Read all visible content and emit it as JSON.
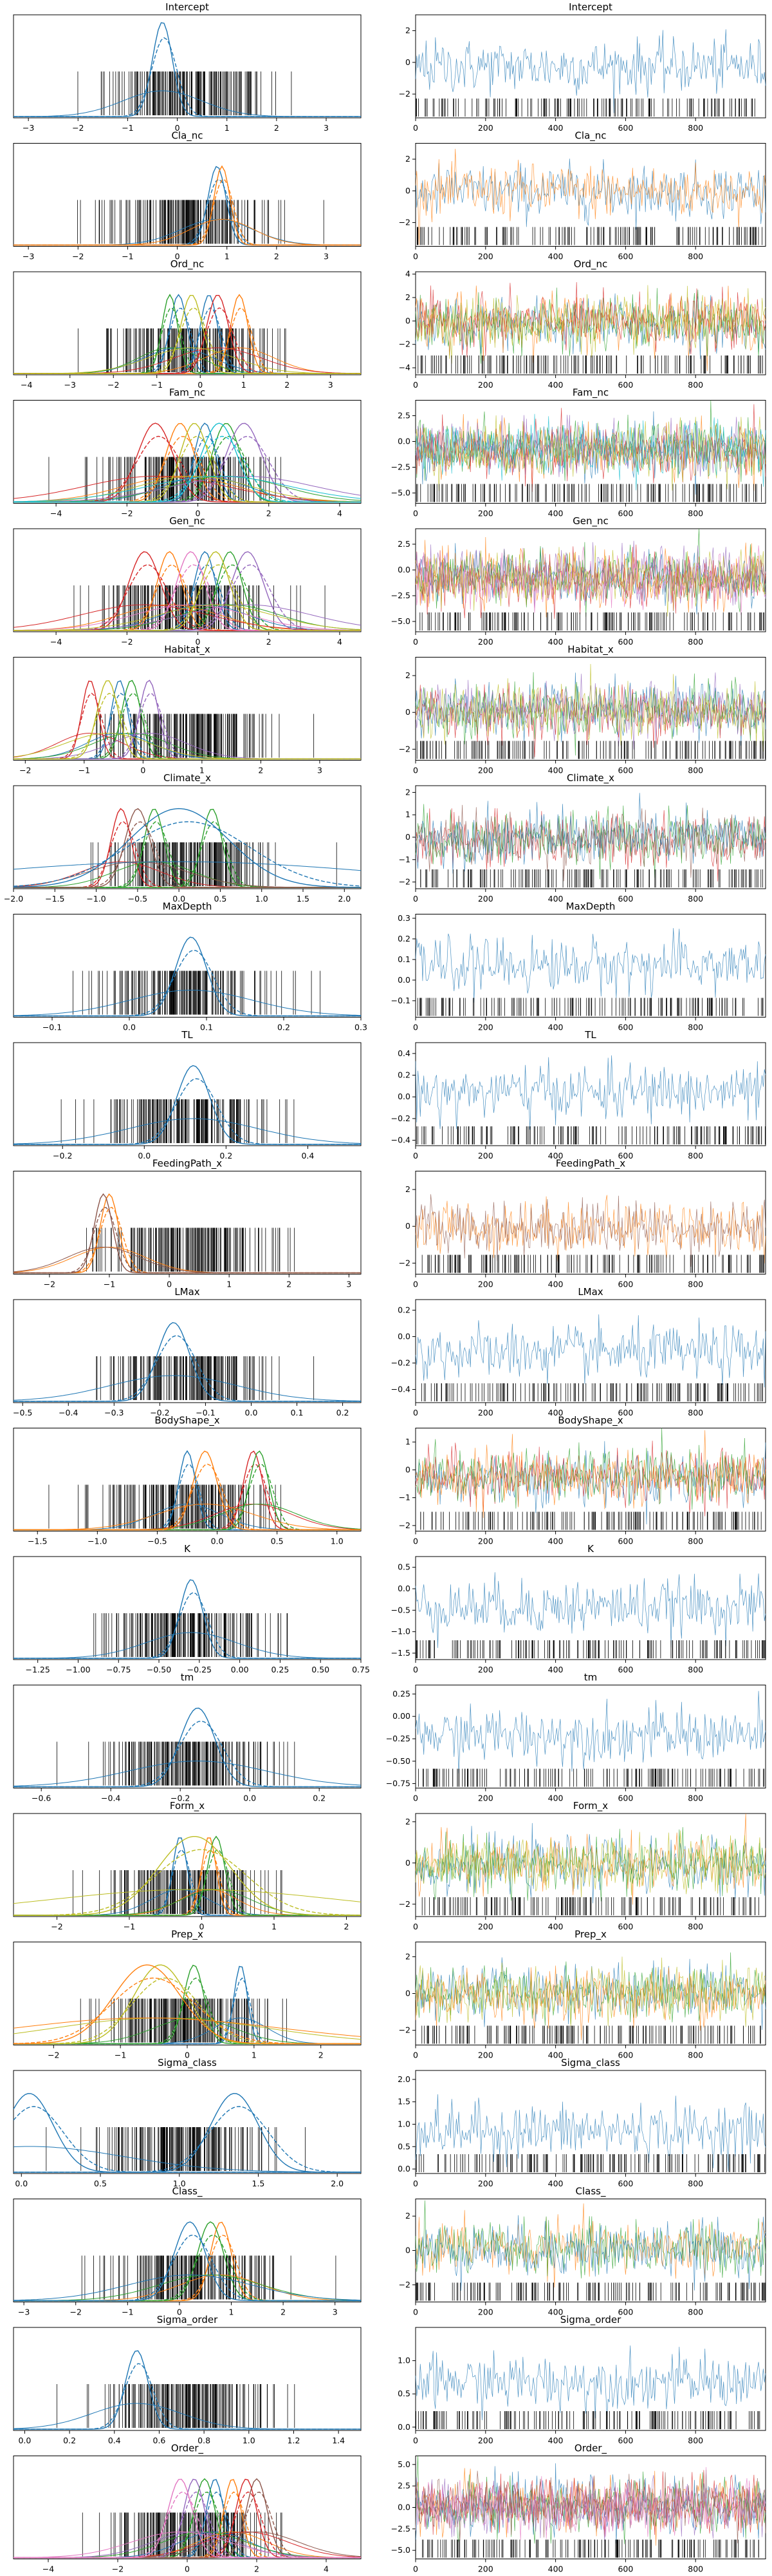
{
  "colors": {
    "C0": "#1f77b4",
    "C1": "#ff7f0e",
    "C2": "#2ca02c",
    "C3": "#d62728",
    "C4": "#9467bd",
    "C5": "#8c564b",
    "C6": "#e377c2",
    "C7": "#7f7f7f",
    "C8": "#bcbd22",
    "C9": "#17becf",
    "rug": "#000000"
  },
  "chart_data": [
    {
      "type": "line",
      "title": "Intercept",
      "left": {
        "xticks": [
          "−3",
          "−2",
          "−1",
          "0",
          "1",
          "2",
          "3"
        ],
        "xlim": [
          -3.3,
          3.7
        ]
      },
      "right": {
        "yticks": [
          "−2",
          "0",
          "2"
        ],
        "ylim": [
          -3.5,
          3.0
        ]
      },
      "series": [
        {
          "name": "",
          "color": "C0",
          "peaks": [
            -0.3
          ],
          "spread": 0.2,
          "scale": 1.2
        }
      ]
    },
    {
      "type": "line",
      "title": "Cla_nc",
      "left": {
        "xticks": [
          "−3",
          "−2",
          "−1",
          "0",
          "1",
          "2",
          "3"
        ],
        "xlim": [
          -3.3,
          3.7
        ]
      },
      "right": {
        "yticks": [
          "−2",
          "0",
          "2"
        ],
        "ylim": [
          -3.5,
          3.0
        ]
      },
      "series": [
        {
          "color": "C0",
          "peaks": [
            0.8
          ],
          "spread": 0.18,
          "scale": 1.0
        },
        {
          "color": "C1",
          "peaks": [
            0.9
          ],
          "spread": 0.16,
          "scale": 1.0
        }
      ]
    },
    {
      "type": "line",
      "title": "Ord_nc",
      "left": {
        "xticks": [
          "−4",
          "−3",
          "−2",
          "−1",
          "0",
          "1",
          "2",
          "3"
        ],
        "xlim": [
          -4.3,
          3.7
        ]
      },
      "right": {
        "yticks": [
          "−4",
          "−2",
          "0",
          "2",
          "4"
        ],
        "ylim": [
          -4.6,
          4.2
        ]
      },
      "series": [
        {
          "color": "C0",
          "peaks": [
            -0.5,
            0.2
          ],
          "spread": 0.2,
          "scale": 1.0
        },
        {
          "color": "C1",
          "peaks": [
            0.9
          ],
          "spread": 0.2,
          "scale": 1.0
        },
        {
          "color": "C2",
          "peaks": [
            -0.7
          ],
          "spread": 0.18,
          "scale": 1.0
        },
        {
          "color": "C3",
          "peaks": [
            0.4
          ],
          "spread": 0.25,
          "scale": 1.0
        },
        {
          "color": "C8",
          "peaks": [
            -0.2
          ],
          "spread": 0.25,
          "scale": 1.0
        }
      ]
    },
    {
      "type": "line",
      "title": "Fam_nc",
      "left": {
        "xticks": [
          "−4",
          "−2",
          "0",
          "2",
          "4"
        ],
        "xlim": [
          -5.2,
          4.6
        ]
      },
      "right": {
        "yticks": [
          "−5.0",
          "−2.5",
          "0.0",
          "2.5"
        ],
        "ylim": [
          -6.0,
          4.0
        ]
      },
      "series": [
        {
          "color": "C0",
          "peaks": [
            0.2
          ],
          "spread": 0.3,
          "scale": 1.0
        },
        {
          "color": "C1",
          "peaks": [
            -0.5
          ],
          "spread": 0.4,
          "scale": 1.0
        },
        {
          "color": "C2",
          "peaks": [
            0.8
          ],
          "spread": 0.4,
          "scale": 1.0
        },
        {
          "color": "C3",
          "peaks": [
            -1.2
          ],
          "spread": 0.5,
          "scale": 1.0
        },
        {
          "color": "C4",
          "peaks": [
            1.3
          ],
          "spread": 0.5,
          "scale": 1.0
        },
        {
          "color": "C8",
          "peaks": [
            -0.1
          ],
          "spread": 0.4,
          "scale": 1.0
        },
        {
          "color": "C9",
          "peaks": [
            0.6
          ],
          "spread": 0.5,
          "scale": 1.0
        }
      ]
    },
    {
      "type": "line",
      "title": "Gen_nc",
      "left": {
        "xticks": [
          "−4",
          "−2",
          "0",
          "2",
          "4"
        ],
        "xlim": [
          -5.2,
          4.6
        ]
      },
      "right": {
        "yticks": [
          "−5.0",
          "−2.5",
          "0.0",
          "2.5"
        ],
        "ylim": [
          -6.0,
          4.0
        ]
      },
      "series": [
        {
          "color": "C0",
          "peaks": [
            0.2
          ],
          "spread": 0.3,
          "scale": 1.0
        },
        {
          "color": "C1",
          "peaks": [
            -0.8
          ],
          "spread": 0.35,
          "scale": 1.0
        },
        {
          "color": "C2",
          "peaks": [
            0.9
          ],
          "spread": 0.35,
          "scale": 1.0
        },
        {
          "color": "C3",
          "peaks": [
            -1.5
          ],
          "spread": 0.45,
          "scale": 1.0
        },
        {
          "color": "C4",
          "peaks": [
            1.4
          ],
          "spread": 0.45,
          "scale": 1.0
        },
        {
          "color": "C6",
          "peaks": [
            -0.2
          ],
          "spread": 0.4,
          "scale": 1.0
        },
        {
          "color": "C8",
          "peaks": [
            0.5
          ],
          "spread": 0.4,
          "scale": 1.0
        }
      ]
    },
    {
      "type": "line",
      "title": "Habitat_x",
      "left": {
        "xticks": [
          "−2",
          "−1",
          "0",
          "1",
          "2",
          "3"
        ],
        "xlim": [
          -2.2,
          3.7
        ]
      },
      "right": {
        "yticks": [
          "−2",
          "0",
          "2"
        ],
        "ylim": [
          -2.6,
          3.0
        ]
      },
      "series": [
        {
          "color": "C0",
          "peaks": [
            -0.4
          ],
          "spread": 0.14,
          "scale": 1.0
        },
        {
          "color": "C3",
          "peaks": [
            -0.9
          ],
          "spread": 0.14,
          "scale": 1.0
        },
        {
          "color": "C2",
          "peaks": [
            -0.2
          ],
          "spread": 0.16,
          "scale": 1.0
        },
        {
          "color": "C4",
          "peaks": [
            0.1
          ],
          "spread": 0.16,
          "scale": 1.0
        },
        {
          "color": "C8",
          "peaks": [
            -0.6
          ],
          "spread": 0.18,
          "scale": 1.0
        }
      ]
    },
    {
      "type": "line",
      "title": "Climate_x",
      "left": {
        "xticks": [
          "−2.0",
          "−1.5",
          "−1.0",
          "−0.5",
          "0.0",
          "0.5",
          "1.0",
          "1.5",
          "2.0"
        ],
        "xlim": [
          -2.0,
          2.2
        ]
      },
      "right": {
        "yticks": [
          "−2",
          "−1",
          "0",
          "1",
          "2"
        ],
        "ylim": [
          -2.3,
          2.3
        ]
      },
      "series": [
        {
          "color": "C3",
          "peaks": [
            -0.7
          ],
          "spread": 0.12,
          "scale": 1.0
        },
        {
          "color": "C2",
          "peaks": [
            -0.3,
            0.4
          ],
          "spread": 0.12,
          "scale": 1.0
        },
        {
          "color": "C5",
          "peaks": [
            -0.5
          ],
          "spread": 0.15,
          "scale": 1.0
        },
        {
          "color": "C0",
          "peaks": [
            0.0
          ],
          "spread": 0.6,
          "scale": 1.0
        }
      ]
    },
    {
      "type": "line",
      "title": "MaxDepth",
      "left": {
        "xticks": [
          "−0.1",
          "0.0",
          "0.1",
          "0.2",
          "0.3"
        ],
        "xlim": [
          -0.15,
          0.3
        ]
      },
      "right": {
        "yticks": [
          "−0.1",
          "0.0",
          "0.1",
          "0.2",
          "0.3"
        ],
        "ylim": [
          -0.18,
          0.32
        ]
      },
      "series": [
        {
          "color": "C0",
          "peaks": [
            0.08
          ],
          "spread": 0.02,
          "scale": 1.0
        }
      ]
    },
    {
      "type": "line",
      "title": "TL",
      "left": {
        "xticks": [
          "−0.2",
          "0.0",
          "0.2",
          "0.4"
        ],
        "xlim": [
          -0.32,
          0.53
        ]
      },
      "right": {
        "yticks": [
          "−0.4",
          "−0.2",
          "0.0",
          "0.2",
          "0.4"
        ],
        "ylim": [
          -0.45,
          0.5
        ]
      },
      "series": [
        {
          "color": "C0",
          "peaks": [
            0.12
          ],
          "spread": 0.04,
          "scale": 1.0
        }
      ]
    },
    {
      "type": "line",
      "title": "FeedingPath_x",
      "left": {
        "xticks": [
          "−2",
          "−1",
          "0",
          "1",
          "2",
          "3"
        ],
        "xlim": [
          -2.6,
          3.2
        ]
      },
      "right": {
        "yticks": [
          "−2",
          "0",
          "2"
        ],
        "ylim": [
          -2.6,
          3.0
        ]
      },
      "series": [
        {
          "color": "C1",
          "peaks": [
            -1.0
          ],
          "spread": 0.15,
          "scale": 1.0
        },
        {
          "color": "C5",
          "peaks": [
            -1.1
          ],
          "spread": 0.15,
          "scale": 1.0
        }
      ]
    },
    {
      "type": "line",
      "title": "LMax",
      "left": {
        "xticks": [
          "−0.5",
          "−0.4",
          "−0.3",
          "−0.2",
          "−0.1",
          "0.0",
          "0.1",
          "0.2"
        ],
        "xlim": [
          -0.52,
          0.24
        ]
      },
      "right": {
        "yticks": [
          "−0.4",
          "−0.2",
          "0.0",
          "0.2"
        ],
        "ylim": [
          -0.5,
          0.28
        ]
      },
      "series": [
        {
          "color": "C0",
          "peaks": [
            -0.17
          ],
          "spread": 0.035,
          "scale": 1.0
        }
      ]
    },
    {
      "type": "line",
      "title": "BodyShape_x",
      "left": {
        "xticks": [
          "−1.5",
          "−1.0",
          "−0.5",
          "0.0",
          "0.5",
          "1.0"
        ],
        "xlim": [
          -1.7,
          1.2
        ]
      },
      "right": {
        "yticks": [
          "−2",
          "−1",
          "0",
          "1"
        ],
        "ylim": [
          -2.2,
          1.5
        ]
      },
      "series": [
        {
          "color": "C0",
          "peaks": [
            -0.25
          ],
          "spread": 0.07,
          "scale": 1.0
        },
        {
          "color": "C3",
          "peaks": [
            0.3
          ],
          "spread": 0.08,
          "scale": 1.0
        },
        {
          "color": "C2",
          "peaks": [
            0.35
          ],
          "spread": 0.08,
          "scale": 1.0
        },
        {
          "color": "C1",
          "peaks": [
            -0.1
          ],
          "spread": 0.1,
          "scale": 1.0
        }
      ]
    },
    {
      "type": "line",
      "title": "K",
      "left": {
        "xticks": [
          "−1.25",
          "−1.00",
          "−0.75",
          "−0.50",
          "−0.25",
          "0.00",
          "0.25",
          "0.50",
          "0.75"
        ],
        "xlim": [
          -1.4,
          0.75
        ]
      },
      "right": {
        "yticks": [
          "−1.5",
          "−1.0",
          "−0.5",
          "0.0",
          "0.5"
        ],
        "ylim": [
          -1.65,
          0.75
        ]
      },
      "series": [
        {
          "color": "C0",
          "peaks": [
            -0.3
          ],
          "spread": 0.07,
          "scale": 1.0
        }
      ]
    },
    {
      "type": "line",
      "title": "tm",
      "left": {
        "xticks": [
          "−0.6",
          "−0.4",
          "−0.2",
          "0.0",
          "0.2"
        ],
        "xlim": [
          -0.68,
          0.32
        ]
      },
      "right": {
        "yticks": [
          "−0.75",
          "−0.50",
          "−0.25",
          "0.00",
          "0.25"
        ],
        "ylim": [
          -0.8,
          0.35
        ]
      },
      "series": [
        {
          "color": "C0",
          "peaks": [
            -0.15
          ],
          "spread": 0.05,
          "scale": 1.0
        }
      ]
    },
    {
      "type": "line",
      "title": "Form_x",
      "left": {
        "xticks": [
          "−2",
          "−1",
          "0",
          "1",
          "2"
        ],
        "xlim": [
          -2.6,
          2.2
        ]
      },
      "right": {
        "yticks": [
          "−2",
          "0",
          "2"
        ],
        "ylim": [
          -2.6,
          2.4
        ]
      },
      "series": [
        {
          "color": "C0",
          "peaks": [
            -0.3
          ],
          "spread": 0.1,
          "scale": 1.0
        },
        {
          "color": "C1",
          "peaks": [
            0.1
          ],
          "spread": 0.1,
          "scale": 1.0
        },
        {
          "color": "C2",
          "peaks": [
            0.2
          ],
          "spread": 0.12,
          "scale": 1.0
        },
        {
          "color": "C8",
          "peaks": [
            -0.1
          ],
          "spread": 0.5,
          "scale": 1.0
        }
      ]
    },
    {
      "type": "line",
      "title": "Prep_x",
      "left": {
        "xticks": [
          "−2",
          "−1",
          "0",
          "1",
          "2"
        ],
        "xlim": [
          -2.6,
          2.6
        ]
      },
      "right": {
        "yticks": [
          "−2",
          "0",
          "2"
        ],
        "ylim": [
          -2.8,
          2.8
        ]
      },
      "series": [
        {
          "color": "C0",
          "peaks": [
            0.8
          ],
          "spread": 0.1,
          "scale": 1.0
        },
        {
          "color": "C2",
          "peaks": [
            0.1
          ],
          "spread": 0.15,
          "scale": 1.0
        },
        {
          "color": "C8",
          "peaks": [
            -0.4
          ],
          "spread": 0.4,
          "scale": 1.0
        },
        {
          "color": "C1",
          "peaks": [
            -0.6
          ],
          "spread": 0.5,
          "scale": 1.0
        }
      ]
    },
    {
      "type": "line",
      "title": "Sigma_class",
      "left": {
        "xticks": [
          "0.0",
          "0.5",
          "1.0",
          "1.5",
          "2.0"
        ],
        "xlim": [
          -0.05,
          2.15
        ]
      },
      "right": {
        "yticks": [
          "0.0",
          "0.5",
          "1.0",
          "1.5",
          "2.0"
        ],
        "ylim": [
          -0.1,
          2.2
        ]
      },
      "series": [
        {
          "color": "C0",
          "peaks": [
            0.05,
            1.35
          ],
          "spread": 0.15,
          "scale": 1.0
        }
      ]
    },
    {
      "type": "line",
      "title": "Class_",
      "left": {
        "xticks": [
          "−3",
          "−2",
          "−1",
          "0",
          "1",
          "2",
          "3"
        ],
        "xlim": [
          -3.2,
          3.5
        ]
      },
      "right": {
        "yticks": [
          "−2",
          "0",
          "2"
        ],
        "ylim": [
          -3.0,
          3.0
        ]
      },
      "series": [
        {
          "color": "C1",
          "peaks": [
            0.8
          ],
          "spread": 0.2,
          "scale": 1.0
        },
        {
          "color": "C2",
          "peaks": [
            0.6
          ],
          "spread": 0.25,
          "scale": 1.0
        },
        {
          "color": "C0",
          "peaks": [
            0.2
          ],
          "spread": 0.3,
          "scale": 1.0
        }
      ]
    },
    {
      "type": "line",
      "title": "Sigma_order",
      "left": {
        "xticks": [
          "0.0",
          "0.2",
          "0.4",
          "0.6",
          "0.8",
          "1.0",
          "1.2",
          "1.4"
        ],
        "xlim": [
          -0.05,
          1.5
        ]
      },
      "right": {
        "yticks": [
          "0.0",
          "0.5",
          "1.0"
        ],
        "ylim": [
          -0.05,
          1.5
        ]
      },
      "series": [
        {
          "color": "C0",
          "peaks": [
            0.5
          ],
          "spread": 0.05,
          "scale": 1.0
        }
      ]
    },
    {
      "type": "line",
      "title": "Order_",
      "left": {
        "xticks": [
          "−4",
          "−2",
          "0",
          "2",
          "4"
        ],
        "xlim": [
          -5.0,
          5.0
        ]
      },
      "right": {
        "yticks": [
          "−5.0",
          "−2.5",
          "0.0",
          "2.5",
          "5.0"
        ],
        "ylim": [
          -6.0,
          6.0
        ]
      },
      "series": [
        {
          "color": "C0",
          "peaks": [
            0.8
          ],
          "spread": 0.25,
          "scale": 1.0
        },
        {
          "color": "C1",
          "peaks": [
            1.3
          ],
          "spread": 0.25,
          "scale": 1.0
        },
        {
          "color": "C2",
          "peaks": [
            0.5
          ],
          "spread": 0.3,
          "scale": 1.0
        },
        {
          "color": "C3",
          "peaks": [
            1.7
          ],
          "spread": 0.3,
          "scale": 1.0
        },
        {
          "color": "C4",
          "peaks": [
            0.2
          ],
          "spread": 0.3,
          "scale": 1.0
        },
        {
          "color": "C5",
          "peaks": [
            2.0
          ],
          "spread": 0.3,
          "scale": 1.0
        },
        {
          "color": "C6",
          "peaks": [
            -0.2
          ],
          "spread": 0.35,
          "scale": 1.0
        }
      ]
    }
  ],
  "trace_xticks": [
    "0",
    "200",
    "400",
    "600",
    "800"
  ],
  "trace_xlim": [
    0,
    1000
  ]
}
